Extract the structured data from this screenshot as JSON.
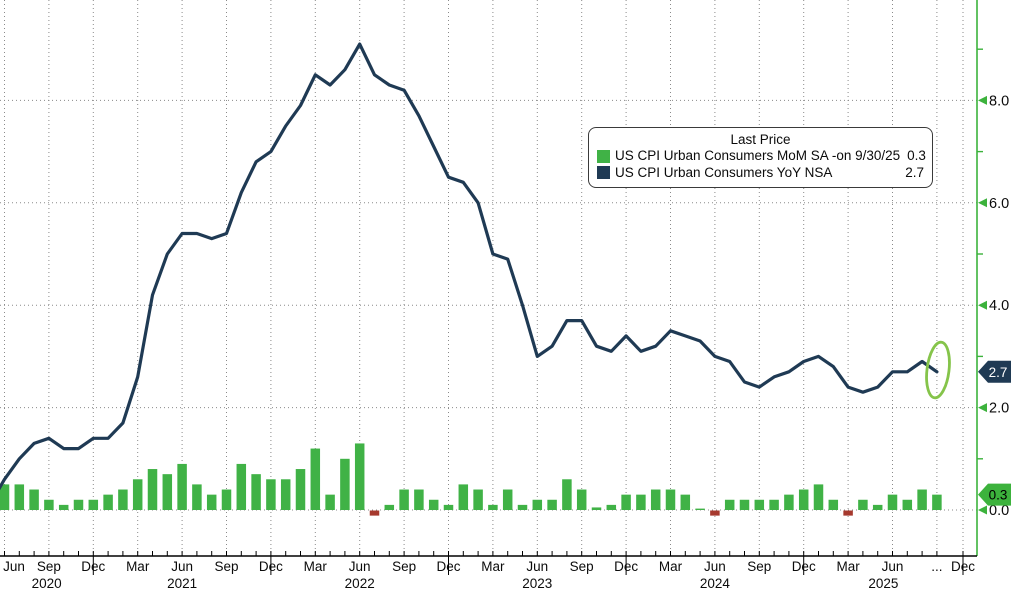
{
  "legend": {
    "title": "Last Price",
    "rows": [
      {
        "swatch": "#40b246",
        "label": "US CPI Urban Consumers MoM SA -",
        "date_note": "on 9/30/25",
        "value": "0.3"
      },
      {
        "swatch": "#1f3a54",
        "label": "US CPI Urban Consumers YoY NSA",
        "date_note": "",
        "value": "2.7"
      }
    ]
  },
  "colors": {
    "line_navy": "#1f3a54",
    "bar_green": "#40b246",
    "bar_red": "#a6392e",
    "axis_green": "#3cb23c",
    "badge_navy_bg": "#1f3a54",
    "badge_navy_fg": "#ffffff",
    "badge_green_bg": "#3cb23c",
    "badge_green_fg": "#000000",
    "grid_gray": "#8a8a8a",
    "axis_black": "#000000",
    "ellipse_green": "#85c44a"
  },
  "chart_data": {
    "type": "mixed",
    "months": [
      "2020-05",
      "2020-06",
      "2020-07",
      "2020-08",
      "2020-09",
      "2020-10",
      "2020-11",
      "2020-12",
      "2021-01",
      "2021-02",
      "2021-03",
      "2021-04",
      "2021-05",
      "2021-06",
      "2021-07",
      "2021-08",
      "2021-09",
      "2021-10",
      "2021-11",
      "2021-12",
      "2022-01",
      "2022-02",
      "2022-03",
      "2022-04",
      "2022-05",
      "2022-06",
      "2022-07",
      "2022-08",
      "2022-09",
      "2022-10",
      "2022-11",
      "2022-12",
      "2023-01",
      "2023-02",
      "2023-03",
      "2023-04",
      "2023-05",
      "2023-06",
      "2023-07",
      "2023-08",
      "2023-09",
      "2023-10",
      "2023-11",
      "2023-12",
      "2024-01",
      "2024-02",
      "2024-03",
      "2024-04",
      "2024-05",
      "2024-06",
      "2024-07",
      "2024-08",
      "2024-09",
      "2024-10",
      "2024-11",
      "2024-12",
      "2025-01",
      "2025-02",
      "2025-03",
      "2025-04",
      "2025-05",
      "2025-06",
      "2025-07",
      "2025-08",
      "2025-09"
    ],
    "series": [
      {
        "name": "US CPI Urban Consumers MoM SA",
        "type": "bar",
        "values": [
          null,
          0.5,
          0.5,
          0.4,
          0.2,
          0.1,
          0.2,
          0.2,
          0.3,
          0.4,
          0.6,
          0.8,
          0.7,
          0.9,
          0.5,
          0.3,
          0.4,
          0.9,
          0.7,
          0.6,
          0.6,
          0.8,
          1.2,
          0.3,
          1.0,
          1.3,
          -0.1,
          0.1,
          0.4,
          0.4,
          0.2,
          0.1,
          0.5,
          0.4,
          0.1,
          0.4,
          0.1,
          0.2,
          0.2,
          0.6,
          0.4,
          0.05,
          0.1,
          0.3,
          0.3,
          0.4,
          0.4,
          0.3,
          0.0,
          -0.1,
          0.2,
          0.2,
          0.2,
          0.2,
          0.3,
          0.4,
          0.5,
          0.2,
          -0.1,
          0.2,
          0.1,
          0.3,
          0.2,
          0.4,
          0.3
        ],
        "last_value": 0.3,
        "last_date": "9/30/25"
      },
      {
        "name": "US CPI Urban Consumers YoY NSA",
        "type": "line",
        "values": [
          0.1,
          0.6,
          1.0,
          1.3,
          1.4,
          1.2,
          1.2,
          1.4,
          1.4,
          1.7,
          2.6,
          4.2,
          5.0,
          5.4,
          5.4,
          5.3,
          5.4,
          6.2,
          6.8,
          7.0,
          7.5,
          7.9,
          8.5,
          8.3,
          8.6,
          9.1,
          8.5,
          8.3,
          8.2,
          7.7,
          7.1,
          6.5,
          6.4,
          6.0,
          5.0,
          4.9,
          4.0,
          3.0,
          3.2,
          3.7,
          3.7,
          3.2,
          3.1,
          3.4,
          3.1,
          3.2,
          3.5,
          3.4,
          3.3,
          3.0,
          2.9,
          2.5,
          2.4,
          2.6,
          2.7,
          2.9,
          3.0,
          2.8,
          2.4,
          2.3,
          2.4,
          2.7,
          2.7,
          2.9,
          2.7
        ],
        "last_value": 2.7
      }
    ],
    "ylim": [
      0,
      10
    ],
    "grid": true,
    "legend_position": "top-right-inset",
    "annotation": {
      "shape": "ellipse",
      "target": "last-yoy-point",
      "color": "#85c44a"
    }
  },
  "y_axis": {
    "side": "right",
    "major_ticks": [
      0,
      2,
      4,
      6,
      8
    ],
    "tick_labels": [
      "0.0",
      "2.0",
      "4.0",
      "6.0",
      "8.0"
    ],
    "minor_ticks": [
      1,
      3,
      5,
      7,
      9
    ],
    "badges": [
      {
        "text": "2.7",
        "value": 2.7,
        "bg": "#1f3a54",
        "fg": "#ffffff"
      },
      {
        "text": "0.3",
        "value": 0.3,
        "bg": "#3cb23c",
        "fg": "#000000"
      }
    ]
  },
  "x_axis": {
    "quarter_labels": [
      {
        "text": "Jun",
        "month_index": 1
      },
      {
        "text": "Sep",
        "month_index": 4
      },
      {
        "text": "Dec",
        "month_index": 7
      },
      {
        "text": "Mar",
        "month_index": 10
      },
      {
        "text": "Jun",
        "month_index": 13
      },
      {
        "text": "Sep",
        "month_index": 16
      },
      {
        "text": "Dec",
        "month_index": 19
      },
      {
        "text": "Mar",
        "month_index": 22
      },
      {
        "text": "Jun",
        "month_index": 25
      },
      {
        "text": "Sep",
        "month_index": 28
      },
      {
        "text": "Dec",
        "month_index": 31
      },
      {
        "text": "Mar",
        "month_index": 34
      },
      {
        "text": "Jun",
        "month_index": 37
      },
      {
        "text": "Sep",
        "month_index": 40
      },
      {
        "text": "Dec",
        "month_index": 43
      },
      {
        "text": "Mar",
        "month_index": 46
      },
      {
        "text": "Jun",
        "month_index": 49
      },
      {
        "text": "Sep",
        "month_index": 52
      },
      {
        "text": "Dec",
        "month_index": 55
      },
      {
        "text": "Mar",
        "month_index": 58
      },
      {
        "text": "Jun",
        "month_index": 61
      },
      {
        "text": "...",
        "month_index": 64
      },
      {
        "text": "Dec",
        "month_index": 67
      }
    ],
    "year_labels": [
      "2020",
      "2021",
      "2022",
      "2023",
      "2024",
      "2025"
    ],
    "year_boundary_indices": [
      7,
      19,
      31,
      43,
      55,
      67
    ]
  }
}
